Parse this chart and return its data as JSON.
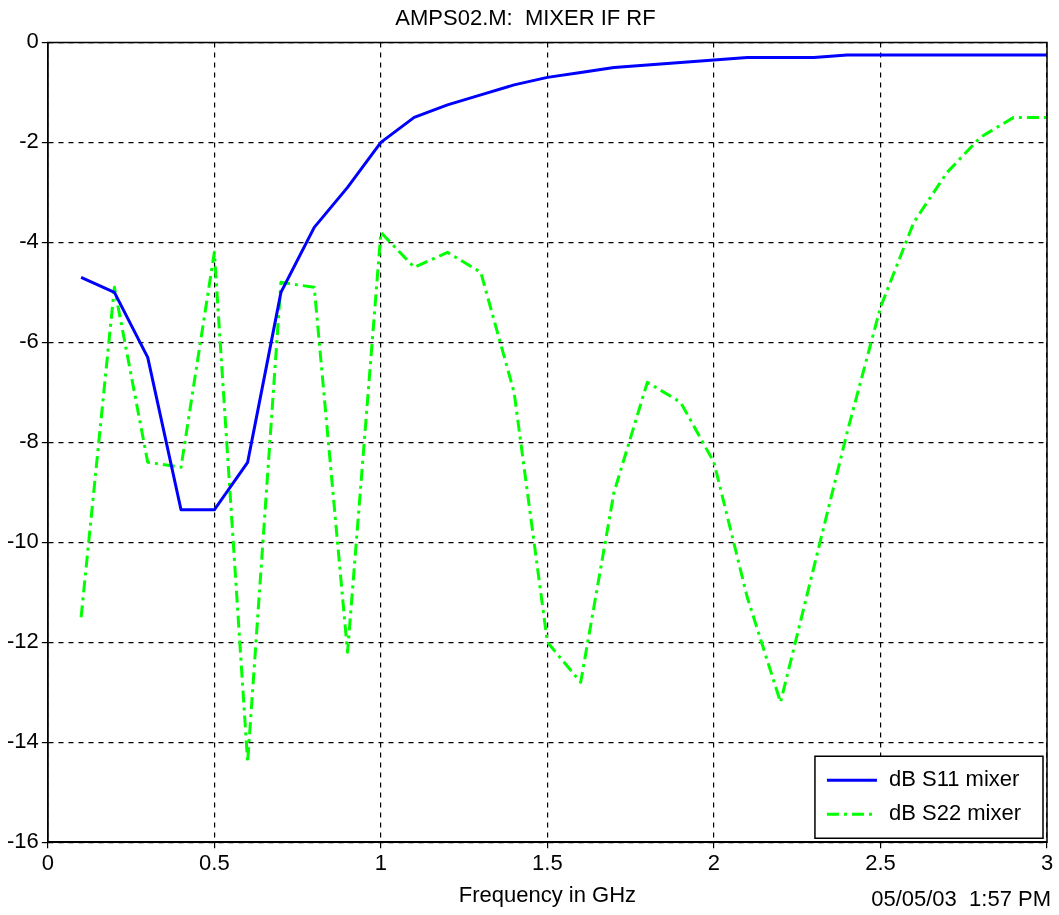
{
  "chart_data": {
    "type": "line",
    "title": "AMPS02.M:  MIXER IF RF",
    "xlabel": "Frequency in GHz",
    "annotations": [
      "05/05/03  1:57 PM"
    ],
    "x": [
      0.1,
      0.2,
      0.3,
      0.4,
      0.5,
      0.6,
      0.7,
      0.8,
      0.9,
      1.0,
      1.1,
      1.2,
      1.3,
      1.4,
      1.5,
      1.6,
      1.7,
      1.8,
      1.9,
      2.0,
      2.1,
      2.2,
      2.3,
      2.4,
      2.5,
      2.6,
      2.7,
      2.8,
      2.9,
      3.0
    ],
    "series": [
      {
        "name": "dB S11 mixer",
        "color": "#0000ff",
        "line_style": "solid",
        "values": [
          -4.7,
          -5.0,
          -6.3,
          -9.35,
          -9.35,
          -8.4,
          -5.0,
          -3.7,
          -2.9,
          -2.0,
          -1.5,
          -1.25,
          -1.05,
          -0.85,
          -0.7,
          -0.6,
          -0.5,
          -0.45,
          -0.4,
          -0.35,
          -0.3,
          -0.3,
          -0.3,
          -0.25,
          -0.25,
          -0.25,
          -0.25,
          -0.25,
          -0.25,
          -0.25
        ]
      },
      {
        "name": "dB S22 mixer",
        "color": "#00ff00",
        "line_style": "dashed",
        "values": [
          -11.5,
          -4.9,
          -8.4,
          -8.5,
          -4.2,
          -14.4,
          -4.8,
          -4.9,
          -12.2,
          -3.8,
          -4.5,
          -4.2,
          -4.6,
          -7.0,
          -12.0,
          -12.8,
          -9.0,
          -6.8,
          -7.2,
          -8.4,
          -11.1,
          -13.2,
          -10.5,
          -7.8,
          -5.3,
          -3.6,
          -2.6,
          -1.9,
          -1.5,
          -1.5
        ]
      }
    ],
    "xlim": [
      0,
      3
    ],
    "xticks": [
      0,
      0.5,
      1,
      1.5,
      2,
      2.5,
      3
    ],
    "ylim": [
      -16,
      0
    ],
    "yticks": [
      -16,
      -14,
      -12,
      -10,
      -8,
      -6,
      -4,
      -2,
      0
    ],
    "grid": true,
    "legend": "bottom right",
    "marker": "none"
  }
}
